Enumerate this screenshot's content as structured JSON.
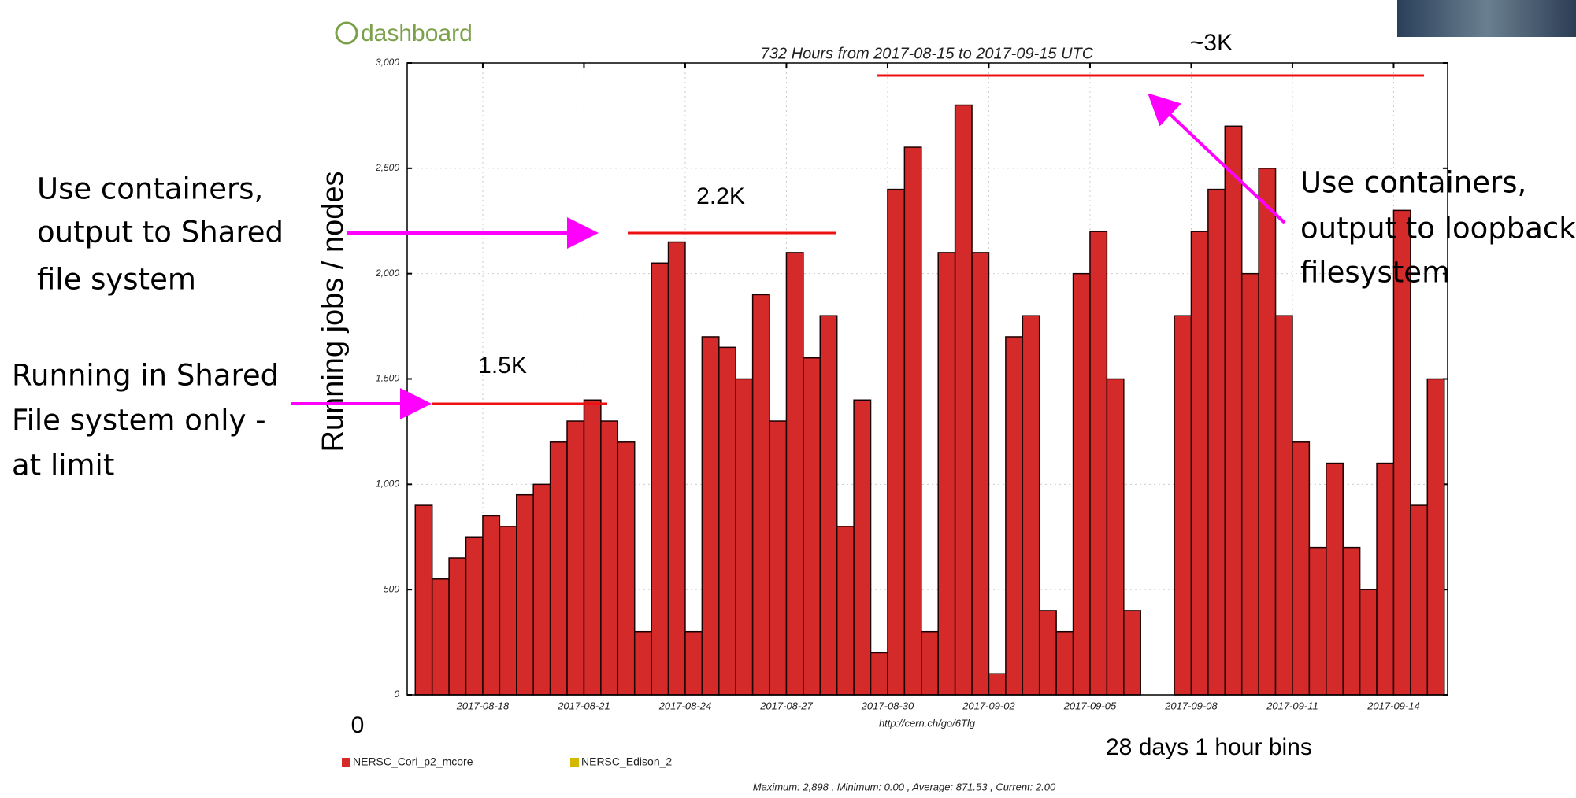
{
  "chart_data": {
    "type": "histogram",
    "logo": "dashboard",
    "title": "732 Hours from 2017-08-15 to 2017-09-15 UTC",
    "y_label": "Running jobs / nodes",
    "url": "http://cern.ch/go/6Tlg",
    "color": "#d42a2a",
    "edge_color": "#1a0000",
    "grid": true,
    "xlim": [
      0.76,
      31.6
    ],
    "xticks": [
      {
        "value": 3,
        "label": "2017-08-18"
      },
      {
        "value": 6,
        "label": "2017-08-21"
      },
      {
        "value": 9,
        "label": "2017-08-24"
      },
      {
        "value": 12,
        "label": "2017-08-27"
      },
      {
        "value": 15,
        "label": "2017-08-30"
      },
      {
        "value": 18,
        "label": "2017-09-02"
      },
      {
        "value": 21,
        "label": "2017-09-05"
      },
      {
        "value": 24,
        "label": "2017-09-08"
      },
      {
        "value": 27,
        "label": "2017-09-11"
      },
      {
        "value": 30,
        "label": "2017-09-14"
      }
    ],
    "ylim": [
      0,
      3000
    ],
    "yticks": [
      0,
      500,
      {
        "value": 1000,
        "label": "1,000"
      },
      {
        "value": 1500,
        "label": "1,500"
      },
      {
        "value": 2000,
        "label": "2,000"
      },
      {
        "value": 2500,
        "label": "2,500"
      },
      {
        "value": 3000,
        "label": "3,000"
      }
    ],
    "bins": [
      1.0,
      1.5,
      2.0,
      2.5,
      3.0,
      3.5,
      4.0,
      4.5,
      5.0,
      5.5,
      6.0,
      6.5,
      7.0,
      7.5,
      8.0,
      8.5,
      9.0,
      9.5,
      10.0,
      10.5,
      11.0,
      11.5,
      12.0,
      12.5,
      13.0,
      13.5,
      14.0,
      14.5,
      15.0,
      15.5,
      16.0,
      16.5,
      17.0,
      17.5,
      18.0,
      18.5,
      19.0,
      19.5,
      20.0,
      20.5,
      21.0,
      21.5,
      22.0,
      22.5,
      23.0,
      23.5,
      24.0,
      24.5,
      25.0,
      25.5,
      26.0,
      26.5,
      27.0,
      27.5,
      28.0,
      28.5,
      29.0,
      29.5,
      30.0,
      30.5,
      31.0,
      31.5
    ],
    "values": [
      900,
      550,
      650,
      750,
      850,
      800,
      950,
      1000,
      1200,
      1300,
      1400,
      1300,
      1200,
      300,
      2050,
      2150,
      300,
      1700,
      1650,
      1500,
      1900,
      1300,
      2100,
      1600,
      1800,
      800,
      1400,
      200,
      2400,
      2600,
      300,
      2100,
      2800,
      2100,
      100,
      1700,
      1800,
      400,
      300,
      2000,
      2200,
      1500,
      400,
      0,
      0,
      1800,
      2200,
      2400,
      2700,
      2000,
      2500,
      1800,
      1200,
      700,
      1100,
      700,
      500,
      1100,
      2300,
      900,
      1500
    ],
    "legend": [
      {
        "name": "NERSC_Cori_p2_mcore",
        "color": "#d42a2a"
      },
      {
        "name": "NERSC_Edison_2",
        "color": "#d4b800"
      }
    ],
    "stats": "Maximum: 2,898 , Minimum: 0.00 , Average: 871.53 , Current: 2.00",
    "annotations": {
      "level_3k": "~3K",
      "level_2_2k": "2.2K",
      "level_1_5k": "1.5K",
      "zero": "0",
      "bins_note": "28 days 1 hour bins",
      "left_top": [
        "Use containers,",
        "output to Shared",
        "file system"
      ],
      "left_bottom": [
        "Running in Shared",
        "File system only -",
        "at limit"
      ],
      "right": [
        "Use containers,",
        "output to loopback",
        "filesystem"
      ]
    }
  }
}
